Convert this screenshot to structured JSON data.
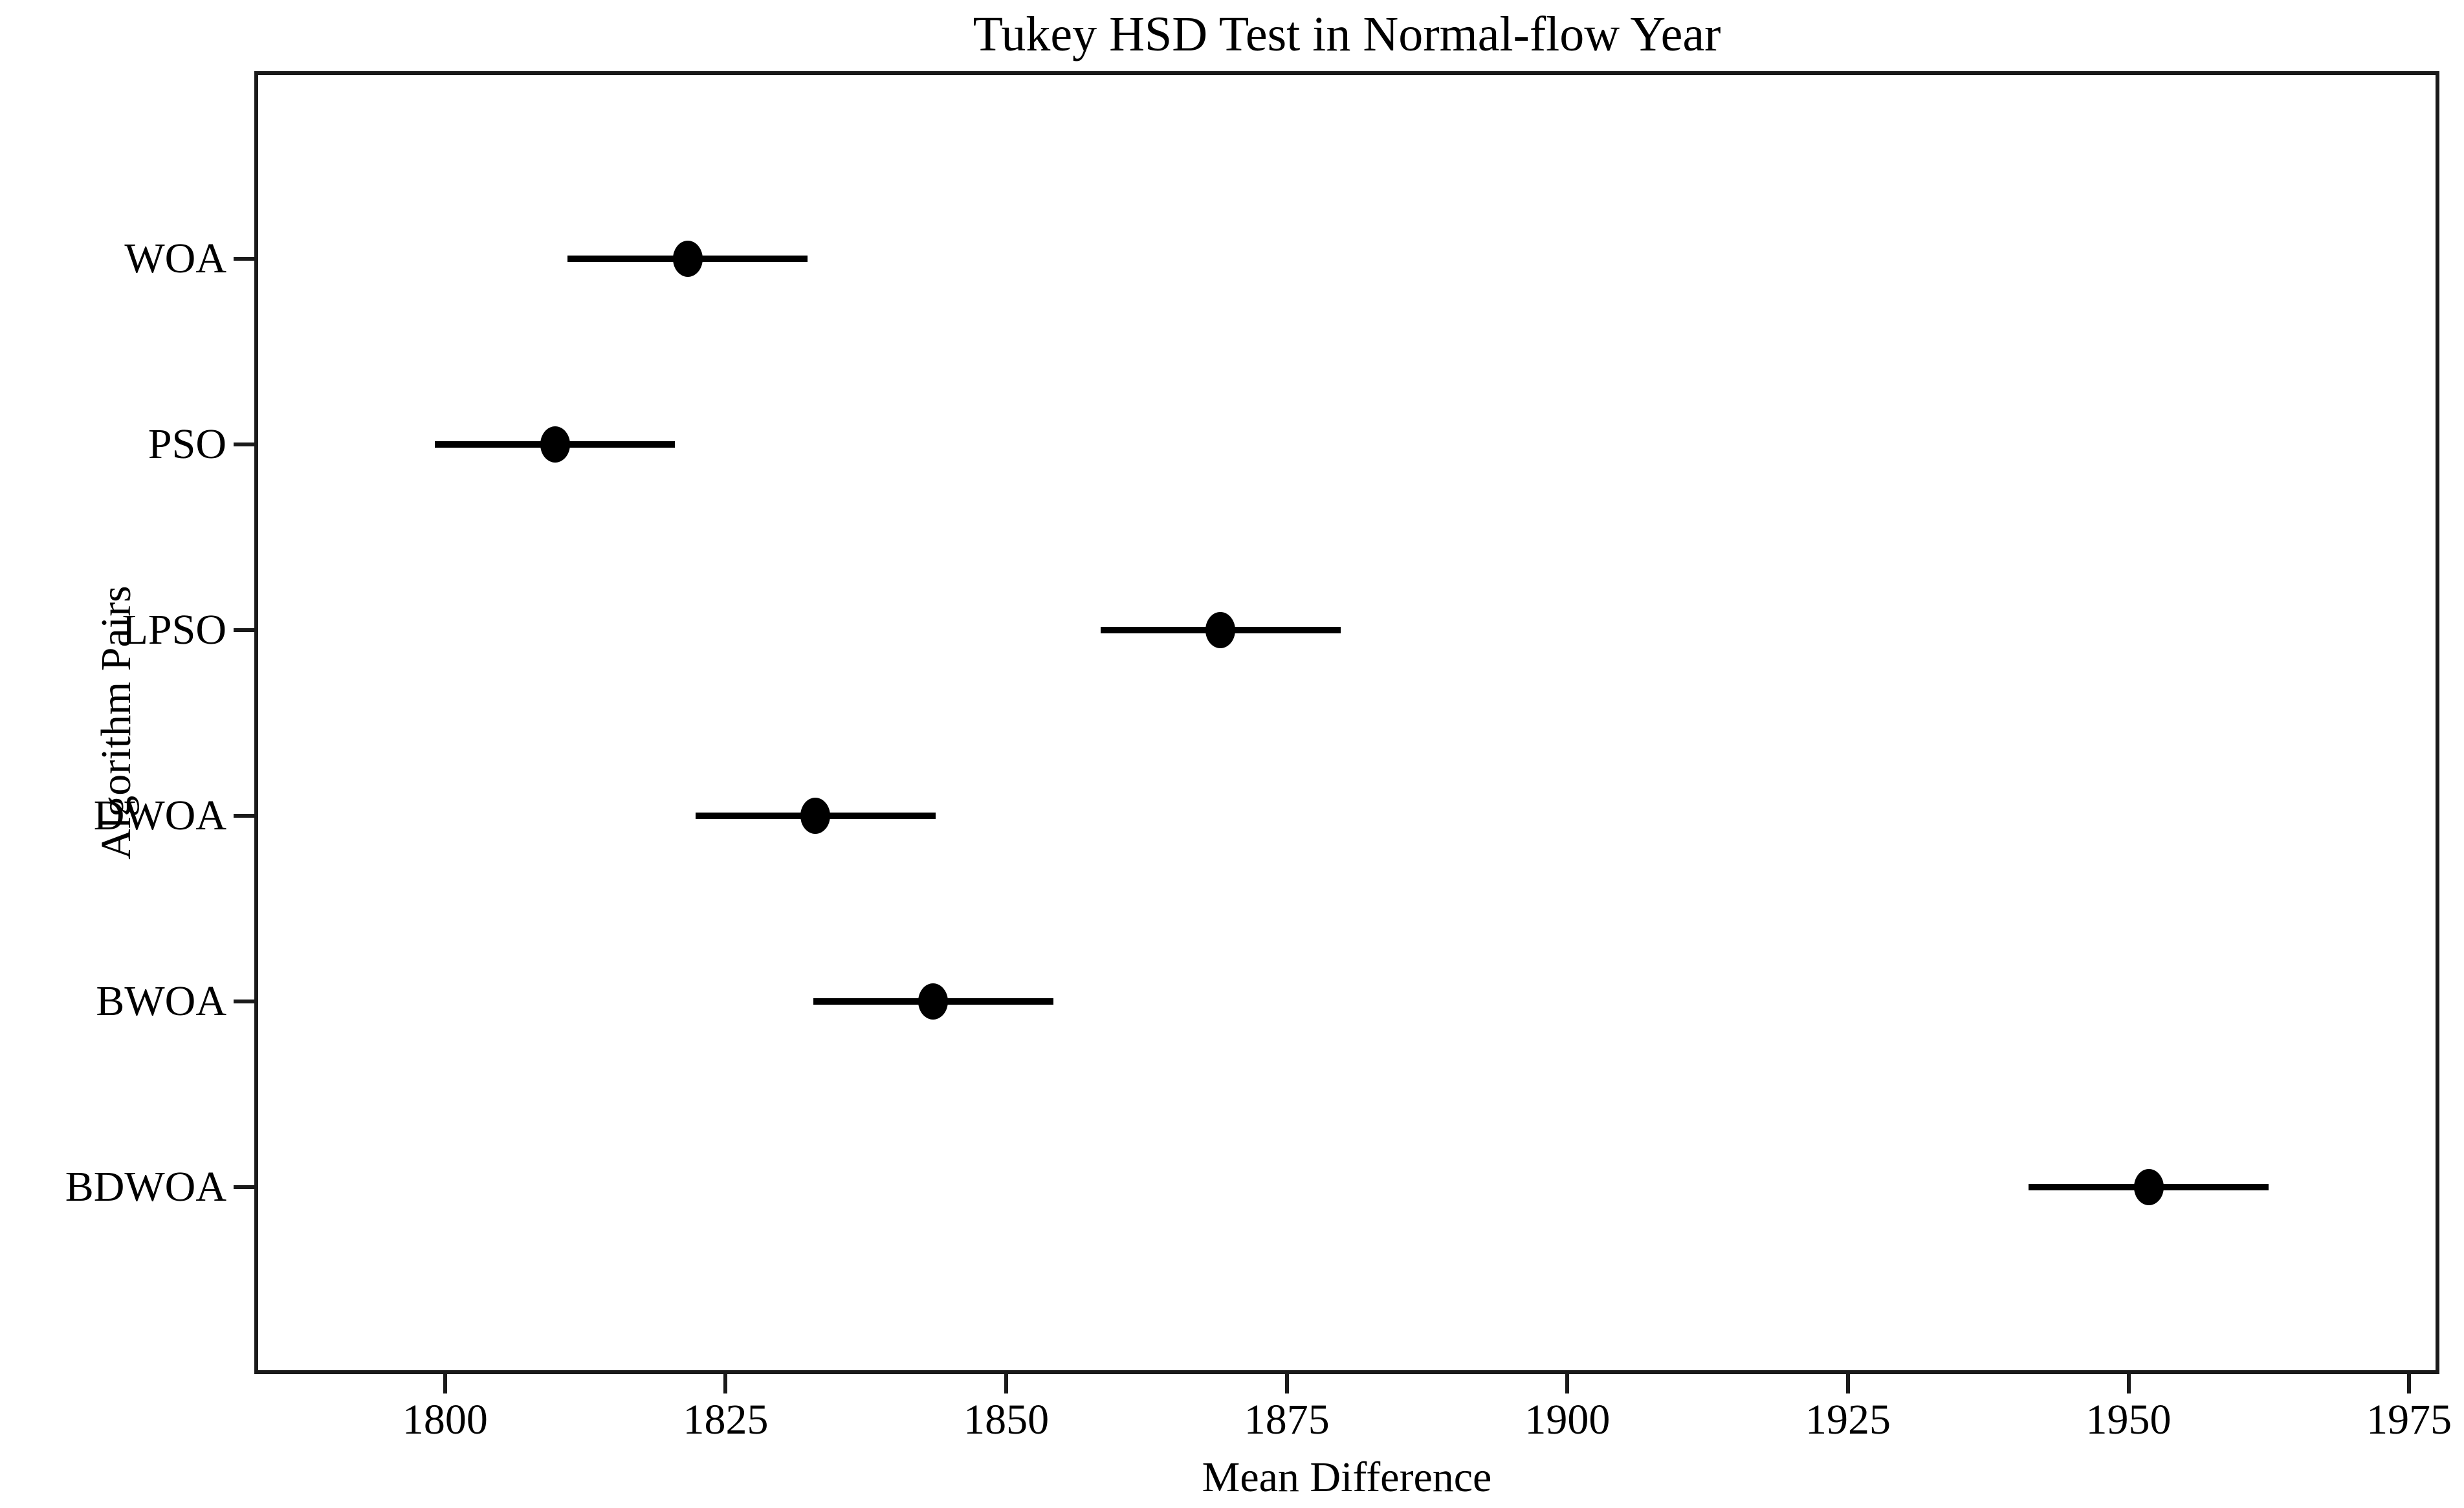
{
  "figure": {
    "background_color": "#ffffff",
    "text_color": "#000000",
    "spine_color": "#1a1a1a"
  },
  "chart_data": {
    "type": "scatter",
    "subtype": "horizontal_error_bar_confidence_intervals",
    "title": "Tukey HSD Test in Normal-flow Year",
    "xlabel": "Mean Difference",
    "ylabel": "Algorithm Pairs",
    "grid": false,
    "xlim": [
      1783,
      1977.7
    ],
    "x_ticks": [
      1800,
      1825,
      1850,
      1875,
      1900,
      1925,
      1950,
      1975
    ],
    "categories_top_to_bottom": [
      "WOA",
      "PSO",
      "LPSO",
      "DWOA",
      "BWOA",
      "BDWOA"
    ],
    "series": [
      {
        "label": "WOA",
        "mean": 1821.6,
        "ci_low": 1810.9,
        "ci_high": 1832.3
      },
      {
        "label": "PSO",
        "mean": 1809.8,
        "ci_low": 1799.1,
        "ci_high": 1820.5
      },
      {
        "label": "LPSO",
        "mean": 1869.1,
        "ci_low": 1858.4,
        "ci_high": 1879.8
      },
      {
        "label": "DWOA",
        "mean": 1833.0,
        "ci_low": 1822.3,
        "ci_high": 1843.7
      },
      {
        "label": "BWOA",
        "mean": 1843.5,
        "ci_low": 1832.8,
        "ci_high": 1854.2
      },
      {
        "label": "BDWOA",
        "mean": 1951.8,
        "ci_low": 1941.1,
        "ci_high": 1962.5
      }
    ],
    "marker": "filled-black-circle",
    "marker_color": "#000000",
    "error_bar_color": "#000000"
  }
}
